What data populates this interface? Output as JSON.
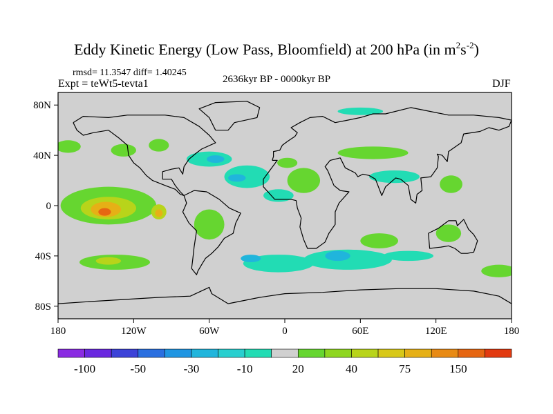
{
  "chart_data": {
    "type": "heatmap",
    "title_main": "Eddy Kinetic Energy (Low Pass, Bloomfield) at 200 hPa (in m",
    "title_sup1": "2",
    "title_mid": "s",
    "title_sup2": "-2",
    "title_end": ")",
    "stats": "rmsd= 11.3547 diff= 1.40245",
    "expt": "Expt = teWt5-tevta1",
    "period": "2636kyr BP - 0000kyr BP",
    "season": "DJF",
    "x_range": [
      -180,
      180
    ],
    "y_range": [
      -90,
      90
    ],
    "x_ticks": [
      {
        "value": -180,
        "label": "180"
      },
      {
        "value": -120,
        "label": "120W"
      },
      {
        "value": -60,
        "label": "60W"
      },
      {
        "value": 0,
        "label": "0"
      },
      {
        "value": 60,
        "label": "60E"
      },
      {
        "value": 120,
        "label": "120E"
      },
      {
        "value": 180,
        "label": "180"
      }
    ],
    "y_ticks": [
      {
        "value": 80,
        "label": "80N"
      },
      {
        "value": 40,
        "label": "40N"
      },
      {
        "value": 0,
        "label": "0"
      },
      {
        "value": -40,
        "label": "40S"
      },
      {
        "value": -80,
        "label": "80S"
      }
    ],
    "colorbar": {
      "colors": [
        "#8a2be2",
        "#6a28e0",
        "#3c42d8",
        "#2a6fe0",
        "#1f95e2",
        "#20b5dc",
        "#28cfcf",
        "#22dcb4",
        "#d0d0d0",
        "#66d630",
        "#8ed620",
        "#b8d41a",
        "#d8c818",
        "#e6b016",
        "#e88a14",
        "#e66612",
        "#e23a10"
      ],
      "labels": [
        {
          "index": 1,
          "label": "-100"
        },
        {
          "index": 3,
          "label": "-50"
        },
        {
          "index": 5,
          "label": "-30"
        },
        {
          "index": 7,
          "label": "-10"
        },
        {
          "index": 9,
          "label": "20"
        },
        {
          "index": 11,
          "label": "40"
        },
        {
          "index": 13,
          "label": "75"
        },
        {
          "index": 15,
          "label": "150"
        }
      ]
    },
    "regions": [
      {
        "name": "north-pacific-northeast",
        "lon": -172,
        "lat": 47,
        "rlon": 10,
        "rlat": 5,
        "level": 20
      },
      {
        "name": "north-pacific-east-pos",
        "lon": -128,
        "lat": 44,
        "rlon": 10,
        "rlat": 5,
        "level": 20
      },
      {
        "name": "north-pacific-far-east-pos",
        "lon": -100,
        "lat": 48,
        "rlon": 8,
        "rlat": 5,
        "level": 20
      },
      {
        "name": "north-america-neg",
        "lon": -60,
        "lat": 37,
        "rlon": 18,
        "rlat": 6,
        "level": -10
      },
      {
        "name": "north-america-neg-core",
        "lon": -55,
        "lat": 37,
        "rlon": 7,
        "rlat": 3,
        "level": -30
      },
      {
        "name": "north-atlantic-neg",
        "lon": -30,
        "lat": 23,
        "rlon": 18,
        "rlat": 9,
        "level": -10
      },
      {
        "name": "north-atlantic-neg-core",
        "lon": -38,
        "lat": 22,
        "rlon": 7,
        "rlat": 3,
        "level": -30
      },
      {
        "name": "atlantic-neg-tail",
        "lon": -5,
        "lat": 8,
        "rlon": 12,
        "rlat": 5,
        "level": -10
      },
      {
        "name": "atlantic-pos",
        "lon": 2,
        "lat": 34,
        "rlon": 8,
        "rlat": 4,
        "level": 20
      },
      {
        "name": "north-africa-pos",
        "lon": 15,
        "lat": 20,
        "rlon": 13,
        "rlat": 10,
        "level": 20
      },
      {
        "name": "siberia-neg",
        "lon": 60,
        "lat": 75,
        "rlon": 18,
        "rlat": 3,
        "level": -10
      },
      {
        "name": "eurasia-pos",
        "lon": 70,
        "lat": 42,
        "rlon": 28,
        "rlat": 5,
        "level": 20
      },
      {
        "name": "asia-neg",
        "lon": 87,
        "lat": 23,
        "rlon": 20,
        "rlat": 5,
        "level": -10
      },
      {
        "name": "east-asia-pos",
        "lon": 132,
        "lat": 17,
        "rlon": 9,
        "rlat": 7,
        "level": 20
      },
      {
        "name": "tropical-pacific-pos",
        "lon": -140,
        "lat": 0,
        "rlon": 38,
        "rlat": 15,
        "level": 20
      },
      {
        "name": "tropical-pacific-40",
        "lon": -140,
        "lat": -2,
        "rlon": 22,
        "rlat": 9,
        "level": 40
      },
      {
        "name": "tropical-pacific-75",
        "lon": -142,
        "lat": -3,
        "rlon": 12,
        "rlat": 6,
        "level": 75
      },
      {
        "name": "tropical-pacific-150",
        "lon": -143,
        "lat": -5,
        "rlon": 5,
        "rlat": 3,
        "level": 150
      },
      {
        "name": "east-pacific-40",
        "lon": -100,
        "lat": -5,
        "rlon": 6,
        "rlat": 6,
        "level": 40
      },
      {
        "name": "east-pacific-75",
        "lon": -100,
        "lat": -6,
        "rlon": 3,
        "rlat": 3,
        "level": 75
      },
      {
        "name": "south-pacific-pos",
        "lon": -135,
        "lat": -45,
        "rlon": 28,
        "rlat": 6,
        "level": 20
      },
      {
        "name": "south-pacific-40",
        "lon": -140,
        "lat": -44,
        "rlon": 10,
        "rlat": 3,
        "level": 40
      },
      {
        "name": "south-atlantic-neg",
        "lon": -5,
        "lat": -46,
        "rlon": 28,
        "rlat": 7,
        "level": -10
      },
      {
        "name": "south-atlantic-neg-core",
        "lon": -27,
        "lat": -42,
        "rlon": 8,
        "rlat": 3,
        "level": -30
      },
      {
        "name": "south-indian-neg",
        "lon": 50,
        "lat": -43,
        "rlon": 35,
        "rlat": 8,
        "level": -10
      },
      {
        "name": "south-indian-neg-core",
        "lon": 42,
        "lat": -40,
        "rlon": 10,
        "rlat": 4,
        "level": -30
      },
      {
        "name": "southern-ocean-pos",
        "lon": 75,
        "lat": -28,
        "rlon": 15,
        "rlat": 6,
        "level": 20
      },
      {
        "name": "southern-ocean-neg",
        "lon": 98,
        "lat": -40,
        "rlon": 20,
        "rlat": 4,
        "level": -10
      },
      {
        "name": "australia-pos",
        "lon": 130,
        "lat": -22,
        "rlon": 10,
        "rlat": 7,
        "level": 20
      },
      {
        "name": "south-pacific-west-pos",
        "lon": 170,
        "lat": -52,
        "rlon": 14,
        "rlat": 5,
        "level": 20
      },
      {
        "name": "south-america-pos",
        "lon": -60,
        "lat": -15,
        "rlon": 12,
        "rlat": 12,
        "level": 20
      }
    ]
  }
}
